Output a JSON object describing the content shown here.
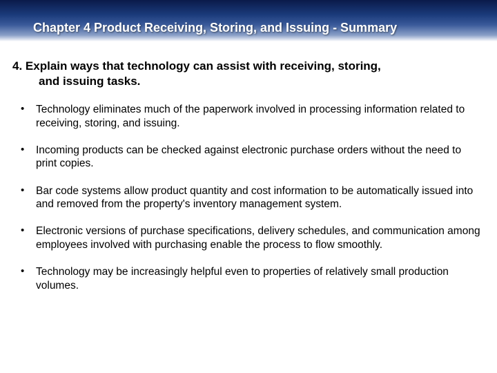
{
  "header": {
    "title": "Chapter 4 Product Receiving, Storing, and Issuing  - Summary",
    "text_color": "#ffffff",
    "gradient_top": "#0a1a4a",
    "gradient_bottom": "#ffffff"
  },
  "objective": {
    "number": "4.",
    "text_line1": "Explain ways that technology can assist with receiving, storing,",
    "text_line2": "and issuing tasks."
  },
  "bullets": [
    "Technology eliminates much of the paperwork involved in processing information related to receiving, storing, and issuing.",
    "Incoming products can be checked against electronic purchase orders without the need to print copies.",
    "Bar code systems allow product quantity and cost information to be automatically issued into and removed from the property's inventory management system.",
    "Electronic versions of purchase specifications, delivery schedules, and communication among employees involved with purchasing enable the process to flow smoothly.",
    "Technology may be increasingly helpful even to properties of relatively small production volumes."
  ],
  "styling": {
    "slide_width": 720,
    "slide_height": 540,
    "background_color": "#ffffff",
    "body_font_size": 15.5,
    "title_font_size": 18,
    "objective_font_size": 17,
    "font_family": "Arial"
  }
}
